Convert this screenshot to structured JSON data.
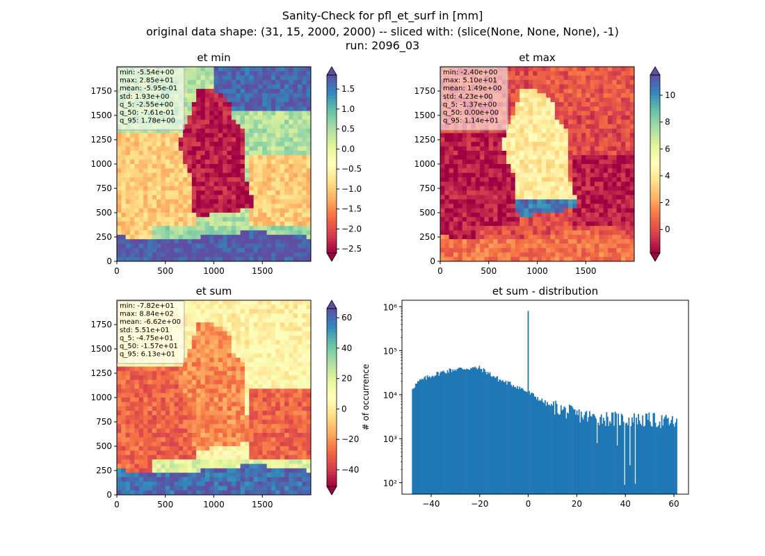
{
  "figure": {
    "title_lines": [
      "Sanity-Check for pfl_et_surf in [mm]",
      "original data shape: (31, 15, 2000, 2000) -- sliced with: (slice(None, None, None), -1)",
      "run: 2096_03"
    ]
  },
  "colormaps": {
    "spectral": [
      "#9e0142",
      "#d53e4f",
      "#f46d43",
      "#fdae61",
      "#fee08b",
      "#ffffbf",
      "#e6f598",
      "#abdda4",
      "#66c2a5",
      "#3288bd",
      "#5e4fa2"
    ]
  },
  "chart_data": [
    {
      "type": "heatmap",
      "title": "et min",
      "xlim": [
        0,
        2000
      ],
      "ylim": [
        0,
        2000
      ],
      "xticks": [
        0,
        500,
        1000,
        1500
      ],
      "yticks": [
        0,
        250,
        500,
        750,
        1000,
        1250,
        1500,
        1750
      ],
      "colorbar": {
        "vmin": -2.6,
        "vmax": 1.85,
        "ticks": [
          1.5,
          1.0,
          0.5,
          0.0,
          -0.5,
          -1.0,
          -1.5,
          -2.0,
          -2.5
        ],
        "tick_labels": [
          "1.5",
          "1.0",
          "0.5",
          "0.0",
          "−0.5",
          "−1.0",
          "−1.5",
          "−2.0",
          "−2.5"
        ],
        "extend": "both",
        "cmap": "Spectral"
      },
      "stats": [
        "min: -5.54e+00",
        "max: 2.85e+01",
        "mean: -5.95e-01",
        "std: 1.93e+00",
        "q_5: -2.55e+00",
        "q_50: -7.61e-01",
        "q_95: 1.78e+00"
      ],
      "field": {
        "background": 0.45,
        "regions": [
          {
            "kind": "sea-north",
            "value": 1.7
          },
          {
            "kind": "land-south",
            "value": -1.0
          },
          {
            "kind": "germany",
            "value": -2.4
          },
          {
            "kind": "alps",
            "value": 1.8
          },
          {
            "kind": "alps-edge",
            "value": 0.6
          }
        ]
      }
    },
    {
      "type": "heatmap",
      "title": "et max",
      "xlim": [
        0,
        2000
      ],
      "ylim": [
        0,
        2000
      ],
      "xticks": [
        0,
        500,
        1000,
        1500
      ],
      "yticks": [
        0,
        250,
        500,
        750,
        1000,
        1250,
        1500,
        1750
      ],
      "colorbar": {
        "vmin": -1.75,
        "vmax": 11.5,
        "ticks": [
          10,
          8,
          6,
          4,
          2,
          0
        ],
        "tick_labels": [
          "10",
          "8",
          "6",
          "4",
          "2",
          "0"
        ],
        "extend": "both",
        "cmap": "Spectral"
      },
      "stats": [
        "min: -2.40e+00",
        "max: 5.10e+01",
        "mean: 1.49e+00",
        "std: 4.23e+00",
        "q_5: -1.37e+00",
        "q_50: 0.00e+00",
        "q_95: 1.14e+01"
      ],
      "field": {
        "background": 0.0,
        "regions": [
          {
            "kind": "sea-north",
            "value": 0.3
          },
          {
            "kind": "land-south",
            "value": -1.2
          },
          {
            "kind": "germany",
            "value": 4.0
          },
          {
            "kind": "germany-blue",
            "value": 10.5
          },
          {
            "kind": "alps",
            "value": 1.0
          }
        ]
      }
    },
    {
      "type": "heatmap",
      "title": "et sum",
      "xlim": [
        0,
        2000
      ],
      "ylim": [
        0,
        2000
      ],
      "xticks": [
        0,
        500,
        1000,
        1500
      ],
      "yticks": [
        0,
        250,
        500,
        750,
        1000,
        1250,
        1500,
        1750
      ],
      "colorbar": {
        "vmin": -51,
        "vmax": 66,
        "ticks": [
          60,
          40,
          20,
          0,
          -20,
          -40
        ],
        "tick_labels": [
          "60",
          "40",
          "20",
          "0",
          "−20",
          "−40"
        ],
        "extend": "both",
        "cmap": "Spectral"
      },
      "stats": [
        "min: -7.82e+01",
        "max: 8.84e+02",
        "mean: -6.62e+00",
        "std: 5.51e+01",
        "q_5: -4.75e+01",
        "q_50: -1.57e+01",
        "q_95: 6.13e+01"
      ],
      "field": {
        "background": 5.0,
        "regions": [
          {
            "kind": "sea-north",
            "value": 2.0
          },
          {
            "kind": "land-south",
            "value": -30.0
          },
          {
            "kind": "germany",
            "value": -22.0
          },
          {
            "kind": "alps",
            "value": 60.0
          },
          {
            "kind": "alps-edge",
            "value": 20.0
          }
        ]
      }
    },
    {
      "type": "bar",
      "title": "et sum - distribution",
      "ylabel": "# of occurrence",
      "xlabel": "",
      "xlim": [
        -52,
        66
      ],
      "ylim": [
        55,
        1400000
      ],
      "yscale": "log",
      "color": "#1f77b4",
      "xticks": [
        -40,
        -20,
        0,
        20,
        40,
        60
      ],
      "xtick_labels": [
        "−40",
        "−20",
        "0",
        "20",
        "40",
        "60"
      ],
      "yticks": [
        100,
        1000,
        10000,
        100000,
        1000000
      ],
      "ytick_labels": [
        "10²",
        "10³",
        "10⁴",
        "10⁵",
        "10⁶"
      ],
      "bins": {
        "start": -47.9,
        "end": 61.3,
        "count": 250
      },
      "profile": [
        [
          -47.9,
          14000
        ],
        [
          -45,
          20000
        ],
        [
          -40,
          27000
        ],
        [
          -35,
          33000
        ],
        [
          -30,
          38000
        ],
        [
          -25,
          40000
        ],
        [
          -20,
          40000
        ],
        [
          -16,
          30000
        ],
        [
          -12,
          22000
        ],
        [
          -8,
          18000
        ],
        [
          -4,
          15000
        ],
        [
          -1,
          12000
        ],
        [
          3,
          9000
        ],
        [
          8,
          6000
        ],
        [
          14,
          4500
        ],
        [
          20,
          3500
        ],
        [
          28,
          3000
        ],
        [
          36,
          2800
        ],
        [
          44,
          2700
        ],
        [
          52,
          2600
        ],
        [
          61.3,
          2300
        ]
      ],
      "spikes": [
        {
          "x": -0.1,
          "count": 800000
        },
        {
          "x": 39.8,
          "count": 90
        },
        {
          "x": 41.8,
          "count": 250
        },
        {
          "x": 44.2,
          "count": 95
        },
        {
          "x": 36.5,
          "count": 700
        },
        {
          "x": 28.2,
          "count": 800
        }
      ]
    }
  ]
}
